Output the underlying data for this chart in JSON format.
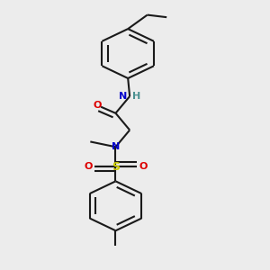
{
  "bg_color": "#ececec",
  "line_color": "#1a1a1a",
  "bond_lw": 1.5,
  "colors": {
    "N": "#0000cc",
    "O": "#dd0000",
    "S": "#cccc00",
    "H": "#4a9090",
    "C": "#1a1a1a"
  },
  "ring_r": 0.085,
  "fig_size": 3.0,
  "dpi": 100
}
